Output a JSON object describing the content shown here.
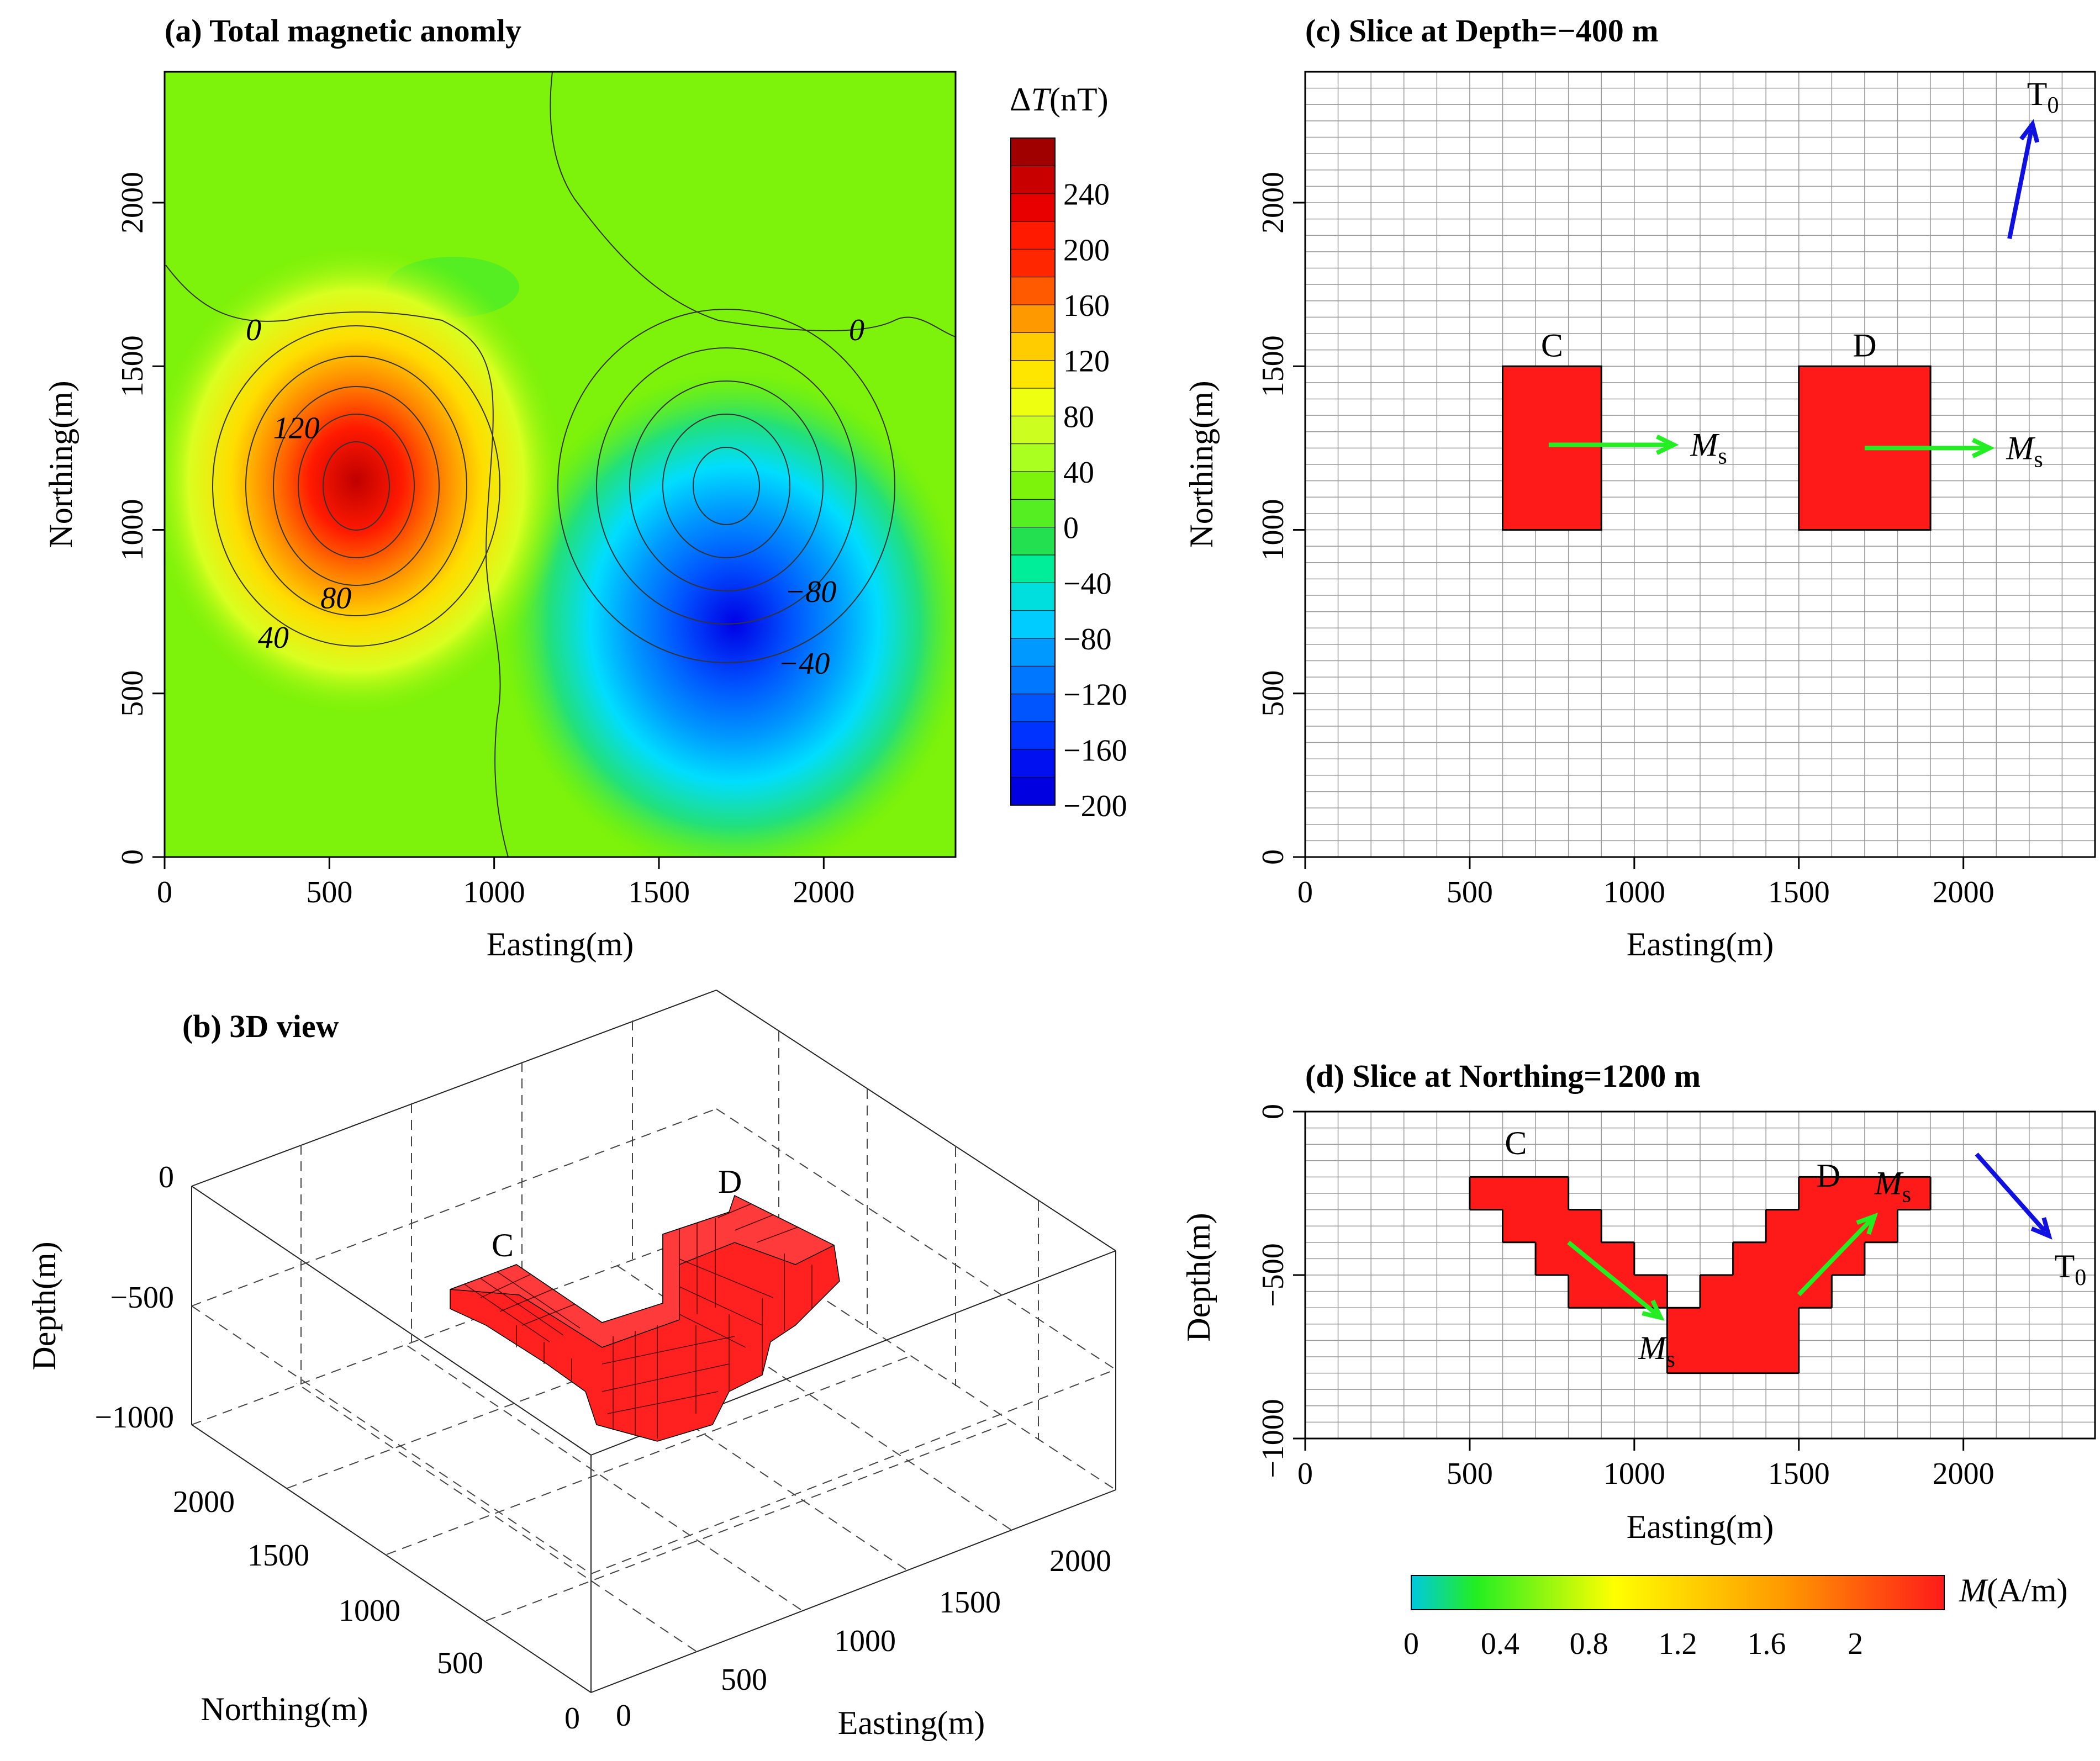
{
  "figure": {
    "panel_a_title": "(a) Total magnetic anomly",
    "panel_b_title": "(b) 3D view",
    "panel_c_title": "(c) Slice at Depth=−400 m",
    "panel_d_title": "(d) Slice at Northing=1200 m"
  },
  "colors": {
    "block_fill": "#ff1a1a",
    "arrow_ms": "#22ee22",
    "arrow_t0": "#1010e0",
    "grid_line": "#9a9a9a",
    "background_field": "#7df20a"
  },
  "chart_data": [
    {
      "id": "a",
      "type": "contour",
      "title": "(a) Total magnetic anomly",
      "xlabel": "Easting(m)",
      "ylabel": "Northing(m)",
      "xlim": [
        0,
        2400
      ],
      "ylim": [
        0,
        2400
      ],
      "xticks": [
        0,
        500,
        1000,
        1500,
        2000
      ],
      "yticks": [
        0,
        500,
        1000,
        1500,
        2000
      ],
      "anomalies": [
        {
          "kind": "positive",
          "center": [
            580,
            1150
          ],
          "peak_nT": 280
        },
        {
          "kind": "negative",
          "center": [
            1720,
            1130
          ],
          "trough_nT": -200
        }
      ],
      "contour_labels": [
        {
          "text": "0",
          "x": 270,
          "y": 1580
        },
        {
          "text": "120",
          "x": 400,
          "y": 1280
        },
        {
          "text": "80",
          "x": 520,
          "y": 760
        },
        {
          "text": "40",
          "x": 330,
          "y": 640
        },
        {
          "text": "0",
          "x": 2100,
          "y": 1580
        },
        {
          "text": "−80",
          "x": 1960,
          "y": 780
        },
        {
          "text": "−40",
          "x": 1940,
          "y": 560
        }
      ],
      "colorbar": {
        "label_symbol": "Δ",
        "label_var": "T",
        "label_unit": "(nT)",
        "range": [
          -200,
          280
        ],
        "ticks": [
          "240",
          "200",
          "160",
          "120",
          "80",
          "40",
          "0",
          "−40",
          "−80",
          "−120",
          "−160",
          "−200"
        ],
        "levels": [
          "#a00000",
          "#c80000",
          "#e80000",
          "#ff1a00",
          "#ff2600",
          "#ff5a00",
          "#ff9900",
          "#ffcc00",
          "#ffe600",
          "#eeff10",
          "#ccff20",
          "#aaff20",
          "#7df20a",
          "#55ee22",
          "#22e050",
          "#00ee99",
          "#00dddd",
          "#00ccff",
          "#0099ff",
          "#0077ff",
          "#0055ff",
          "#0033ff",
          "#0010f0",
          "#0000e0"
        ]
      }
    },
    {
      "id": "b",
      "type": "3d-voxel",
      "title": "(b) 3D view",
      "xlabel": "Easting(m)",
      "ylabel": "Northing(m)",
      "zlabel": "Depth(m)",
      "xticks": [
        "0",
        "500",
        "1000",
        "1500",
        "2000"
      ],
      "yticks": [
        "0",
        "500",
        "1000",
        "1500",
        "2000"
      ],
      "zticks": [
        "0",
        "−500",
        "−1000"
      ],
      "body_labels": [
        "C",
        "D"
      ]
    },
    {
      "id": "c",
      "type": "grid-slice",
      "title": "(c) Slice at Depth=−400 m",
      "xlabel": "Easting(m)",
      "ylabel": "Northing(m)",
      "xlim": [
        0,
        2400
      ],
      "ylim": [
        0,
        2400
      ],
      "cell_size": 100,
      "xticks": [
        0,
        500,
        1000,
        1500,
        2000
      ],
      "yticks": [
        0,
        500,
        1000,
        1500,
        2000
      ],
      "blocks": [
        {
          "label": "C",
          "x": [
            600,
            900
          ],
          "y": [
            1000,
            1500
          ]
        },
        {
          "label": "D",
          "x": [
            1500,
            1900
          ],
          "y": [
            1000,
            1500
          ]
        }
      ],
      "arrows": [
        {
          "name": "Ms-C",
          "from": [
            740,
            1260
          ],
          "to": [
            1120,
            1260
          ],
          "label_main": "M",
          "label_sub": "s"
        },
        {
          "name": "Ms-D",
          "from": [
            1700,
            1250
          ],
          "to": [
            2080,
            1250
          ],
          "label_main": "M",
          "label_sub": "s"
        },
        {
          "name": "T0",
          "from": [
            2140,
            1890
          ],
          "to": [
            2210,
            2240
          ],
          "label_main": "T",
          "label_sub": "0"
        }
      ]
    },
    {
      "id": "d",
      "type": "grid-slice",
      "title": "(d) Slice at Northing=1200 m",
      "xlabel": "Easting(m)",
      "ylabel": "Depth(m)",
      "xlim": [
        0,
        2400
      ],
      "ylim": [
        -1000,
        0
      ],
      "cell_size": 100,
      "xticks": [
        0,
        500,
        1000,
        1500,
        2000
      ],
      "yticks": [
        0,
        -500,
        -1000
      ],
      "ytick_labels": [
        "0",
        "−500",
        "−1000"
      ],
      "cells_C": [
        [
          500,
          -200
        ],
        [
          600,
          -200
        ],
        [
          700,
          -200
        ],
        [
          600,
          -300
        ],
        [
          700,
          -300
        ],
        [
          800,
          -300
        ],
        [
          700,
          -400
        ],
        [
          800,
          -400
        ],
        [
          900,
          -400
        ],
        [
          800,
          -500
        ],
        [
          900,
          -500
        ],
        [
          1000,
          -500
        ]
      ],
      "cells_D": [
        [
          1500,
          -200
        ],
        [
          1600,
          -200
        ],
        [
          1700,
          -200
        ],
        [
          1800,
          -200
        ],
        [
          1400,
          -300
        ],
        [
          1500,
          -300
        ],
        [
          1600,
          -300
        ],
        [
          1700,
          -300
        ],
        [
          1300,
          -400
        ],
        [
          1400,
          -400
        ],
        [
          1500,
          -400
        ],
        [
          1600,
          -400
        ],
        [
          1200,
          -500
        ],
        [
          1300,
          -500
        ],
        [
          1400,
          -500
        ],
        [
          1500,
          -500
        ],
        [
          1100,
          -600
        ],
        [
          1200,
          -600
        ],
        [
          1300,
          -600
        ],
        [
          1400,
          -600
        ],
        [
          1100,
          -700
        ],
        [
          1200,
          -700
        ],
        [
          1300,
          -700
        ],
        [
          1400,
          -700
        ]
      ],
      "body_labels": [
        {
          "text": "C",
          "x": 640,
          "y": -130
        },
        {
          "text": "D",
          "x": 1590,
          "y": -230
        }
      ],
      "arrows": [
        {
          "name": "Ms-C",
          "from": [
            800,
            -400
          ],
          "to": [
            1080,
            -630
          ],
          "label_main": "M",
          "label_sub": "s"
        },
        {
          "name": "Ms-D",
          "from": [
            1500,
            -560
          ],
          "to": [
            1730,
            -320
          ],
          "label_main": "M",
          "label_sub": "s"
        },
        {
          "name": "T0",
          "from": [
            2040,
            -130
          ],
          "to": [
            2260,
            -380
          ],
          "label_main": "T",
          "label_sub": "0"
        }
      ],
      "colorbar": {
        "label_var": "M",
        "label_unit": "(A/m)",
        "range": [
          0,
          2.4
        ],
        "ticks": [
          "0",
          "0.4",
          "0.8",
          "1.2",
          "1.6",
          "2"
        ],
        "stops": [
          "#00c8e0",
          "#22ee22",
          "#ffff00",
          "#ff9900",
          "#ff1a1a"
        ]
      }
    }
  ]
}
